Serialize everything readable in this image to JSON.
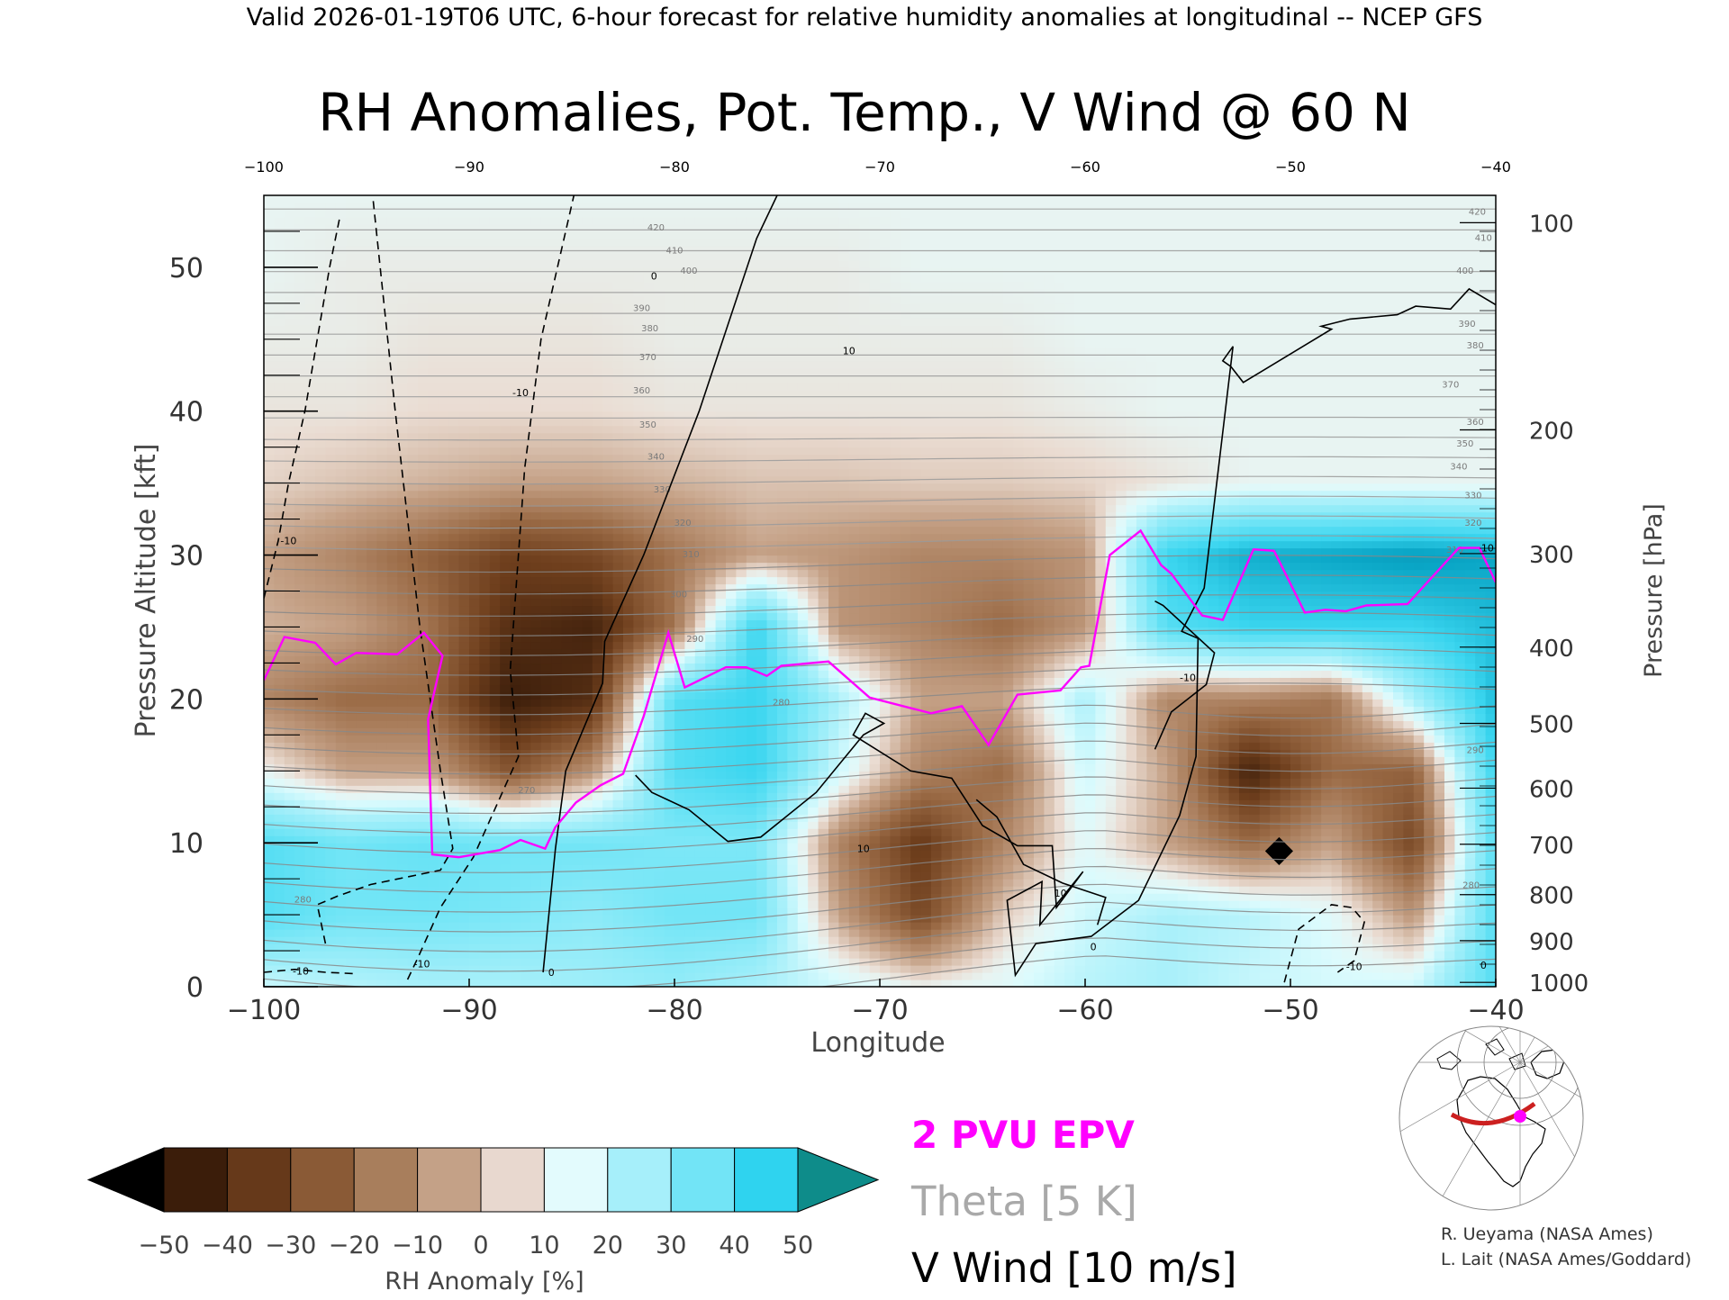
{
  "header": {
    "valid_line": "Valid 2026-01-19T06 UTC, 6-hour forecast for relative humidity anomalies at longitudinal -- NCEP GFS"
  },
  "chart_data": {
    "type": "heatmap",
    "title": "RH Anomalies, Pot. Temp., V Wind @ 60 N",
    "xlabel": "Longitude",
    "ylabel": "Pressure Altitude [kft]",
    "ylabel_right": "Pressure [hPa]",
    "xlim": [
      -100,
      -40
    ],
    "ylim": [
      0,
      55
    ],
    "x_ticks": [
      -100,
      -90,
      -80,
      -70,
      -60,
      -50,
      -40
    ],
    "x_tick_labels": [
      "−100",
      "−90",
      "−80",
      "−70",
      "−60",
      "−50",
      "−40"
    ],
    "y_ticks": [
      0,
      10,
      20,
      30,
      40,
      50
    ],
    "y_tick_labels": [
      "0",
      "10",
      "20",
      "30",
      "40",
      "50"
    ],
    "pressure_ticks": [
      {
        "label": "100",
        "kft": 53.1
      },
      {
        "label": "200",
        "kft": 38.7
      },
      {
        "label": "300",
        "kft": 30.1
      },
      {
        "label": "400",
        "kft": 23.6
      },
      {
        "label": "500",
        "kft": 18.3
      },
      {
        "label": "600",
        "kft": 13.8
      },
      {
        "label": "700",
        "kft": 9.9
      },
      {
        "label": "800",
        "kft": 6.4
      },
      {
        "label": "900",
        "kft": 3.2
      },
      {
        "label": "1000",
        "kft": 0.3
      }
    ],
    "colorbar": {
      "label": "RH Anomaly [%]",
      "tick_labels": [
        "−50",
        "−40",
        "−30",
        "−20",
        "−10",
        "0",
        "10",
        "20",
        "30",
        "40",
        "50"
      ],
      "colors": [
        "#000000",
        "#3b1d0a",
        "#5a3015",
        "#7b4a28",
        "#986641",
        "#b3866a",
        "#cfae9a",
        "#eedfd7",
        "#e3fbfd",
        "#b6f2fb",
        "#8debf8",
        "#5fe2f5",
        "#2fd3ef",
        "#0aa8c9",
        "#0a7fa0",
        "#0e8c8a"
      ]
    },
    "rh_anomaly_field": {
      "x": [
        -100,
        -96,
        -92,
        -88,
        -84,
        -80,
        -76,
        -72,
        -68,
        -64,
        -60,
        -56,
        -52,
        -48,
        -44,
        -40
      ],
      "y": [
        0,
        5,
        10,
        15,
        20,
        25,
        30,
        35,
        40,
        45,
        50,
        55
      ],
      "z": [
        [
          5,
          8,
          10,
          10,
          12,
          14,
          10,
          5,
          0,
          2,
          8,
          10,
          6,
          4,
          5,
          25
        ],
        [
          25,
          20,
          20,
          18,
          15,
          20,
          20,
          -10,
          -28,
          -5,
          5,
          10,
          8,
          2,
          -12,
          25
        ],
        [
          25,
          20,
          22,
          20,
          20,
          18,
          18,
          -15,
          -32,
          -15,
          2,
          -10,
          -20,
          -10,
          -28,
          25
        ],
        [
          0,
          -10,
          -10,
          -25,
          -12,
          25,
          30,
          5,
          -15,
          -20,
          5,
          -10,
          -38,
          -20,
          -22,
          30
        ],
        [
          -15,
          -20,
          -20,
          -40,
          -35,
          25,
          30,
          10,
          -10,
          -10,
          10,
          -15,
          -15,
          -18,
          10,
          35
        ],
        [
          -8,
          -10,
          -18,
          -35,
          -38,
          -18,
          30,
          -12,
          -15,
          -20,
          -12,
          25,
          30,
          30,
          30,
          35
        ],
        [
          -10,
          -15,
          -22,
          -30,
          -28,
          -18,
          -10,
          -12,
          -15,
          -15,
          -12,
          30,
          38,
          40,
          42,
          40
        ],
        [
          -4,
          -6,
          -8,
          -10,
          -10,
          -8,
          -6,
          -6,
          -5,
          -5,
          -4,
          -2,
          0,
          0,
          0,
          0
        ],
        [
          -2,
          -2,
          -3,
          -3,
          -3,
          -2,
          -2,
          -2,
          -2,
          -2,
          -1,
          0,
          0,
          0,
          0,
          0
        ],
        [
          -1,
          -1,
          -2,
          -2,
          -2,
          -1,
          -1,
          -1,
          -1,
          -1,
          0,
          0,
          0,
          0,
          0,
          0
        ],
        [
          0,
          -1,
          -1,
          -1,
          -1,
          -1,
          -1,
          -1,
          0,
          0,
          0,
          0,
          0,
          0,
          0,
          0
        ],
        [
          0,
          0,
          0,
          0,
          0,
          0,
          0,
          0,
          0,
          0,
          0,
          0,
          0,
          0,
          0,
          0
        ]
      ]
    },
    "theta_contours": {
      "interval_K": 5,
      "labels": [
        {
          "text": "270",
          "x": -87.2,
          "y": 13.7
        },
        {
          "text": "280",
          "x": -74.8,
          "y": 19.8
        },
        {
          "text": "290",
          "x": -79.0,
          "y": 24.2
        },
        {
          "text": "300",
          "x": -79.8,
          "y": 27.3
        },
        {
          "text": "310",
          "x": -79.2,
          "y": 30.1
        },
        {
          "text": "320",
          "x": -79.6,
          "y": 32.3
        },
        {
          "text": "330",
          "x": -80.6,
          "y": 34.6
        },
        {
          "text": "340",
          "x": -80.9,
          "y": 36.9
        },
        {
          "text": "350",
          "x": -81.3,
          "y": 39.1
        },
        {
          "text": "360",
          "x": -81.6,
          "y": 41.5
        },
        {
          "text": "370",
          "x": -81.3,
          "y": 43.8
        },
        {
          "text": "380",
          "x": -81.2,
          "y": 45.8
        },
        {
          "text": "390",
          "x": -81.6,
          "y": 47.2
        },
        {
          "text": "400",
          "x": -79.3,
          "y": 49.8
        },
        {
          "text": "410",
          "x": -80.0,
          "y": 51.2
        },
        {
          "text": "420",
          "x": -80.9,
          "y": 52.8
        },
        {
          "text": "420",
          "x": -40.9,
          "y": 53.9
        },
        {
          "text": "410",
          "x": -40.6,
          "y": 52.1
        },
        {
          "text": "400",
          "x": -41.5,
          "y": 49.8
        },
        {
          "text": "390",
          "x": -41.4,
          "y": 46.1
        },
        {
          "text": "380",
          "x": -41.0,
          "y": 44.6
        },
        {
          "text": "370",
          "x": -42.2,
          "y": 41.9
        },
        {
          "text": "360",
          "x": -41.0,
          "y": 39.3
        },
        {
          "text": "350",
          "x": -41.5,
          "y": 37.8
        },
        {
          "text": "340",
          "x": -41.8,
          "y": 36.2
        },
        {
          "text": "330",
          "x": -41.1,
          "y": 34.2
        },
        {
          "text": "320",
          "x": -41.1,
          "y": 32.3
        },
        {
          "text": "310",
          "x": -42.0,
          "y": 30.4
        },
        {
          "text": "290",
          "x": -41.0,
          "y": 16.5
        },
        {
          "text": "280",
          "x": -41.2,
          "y": 7.1
        },
        {
          "text": "280",
          "x": -98.1,
          "y": 6.1
        }
      ]
    },
    "epv_2pvu_line": {
      "x": [
        -100,
        -99,
        -97.5,
        -96.5,
        -95.5,
        -93.5,
        -92.2,
        -91.3,
        -92.0,
        -91.8,
        -90.5,
        -88.5,
        -87.5,
        -86.3,
        -85.8,
        -84.8,
        -83.6,
        -82.5,
        -81.5,
        -80.3,
        -79.5,
        -77.5,
        -76.5,
        -75.5,
        -74.8,
        -72.5,
        -70.5,
        -67.5,
        -66.0,
        -64.7,
        -63.3,
        -61.2,
        -60.2,
        -59.8,
        -58.8,
        -57.3,
        -56.3,
        -55.8,
        -54.3,
        -53.3,
        -51.8,
        -50.8,
        -49.3,
        -48.3,
        -47.3,
        -46.3,
        -44.3,
        -41.8,
        -40.8,
        -40.0
      ],
      "y": [
        21.3,
        24.3,
        23.9,
        22.4,
        23.2,
        23.1,
        24.6,
        23.0,
        18.6,
        9.2,
        9.0,
        9.5,
        10.2,
        9.6,
        11.1,
        12.8,
        14.0,
        14.8,
        18.8,
        24.6,
        20.8,
        22.2,
        22.2,
        21.6,
        22.3,
        22.6,
        20.1,
        19.0,
        19.5,
        16.8,
        20.3,
        20.6,
        22.2,
        22.3,
        30.0,
        31.7,
        29.3,
        28.7,
        25.8,
        25.5,
        30.4,
        30.3,
        26.0,
        26.2,
        26.1,
        26.5,
        26.6,
        30.5,
        30.5,
        28.1
      ]
    },
    "vwind_contours": [
      {
        "level": "0",
        "style": "solid",
        "x": [
          -86.4,
          -85.8,
          -85.3,
          -83.5,
          -83.4,
          -81.5,
          -78.8,
          -76.0,
          -75.0
        ],
        "y": [
          1.0,
          9.6,
          15.0,
          21.1,
          24.0,
          30.0,
          40.0,
          52.0,
          55.0
        ]
      },
      {
        "level": "10",
        "style": "solid",
        "x": [
          -81.9,
          -81.1,
          -79.3,
          -77.4,
          -75.8,
          -73.1,
          -70.8,
          -69.8,
          -70.7,
          -71.3,
          -68.5,
          -66.5,
          -65.0,
          -63.3,
          -61.6,
          -61.4,
          -60.1,
          -62.2,
          -62.1,
          -63.8,
          -63.4,
          -62.4,
          -59.7,
          -57.4,
          -55.4,
          -54.6,
          -54.5,
          -55.3,
          -54.2,
          -52.8,
          -53.3,
          -52.9,
          -52.3,
          -48.0,
          -48.5,
          -47.1,
          -44.8,
          -43.9,
          -42.2,
          -41.3,
          -40.0
        ],
        "y": [
          14.7,
          13.5,
          12.3,
          10.1,
          10.4,
          13.5,
          17.5,
          18.3,
          19.0,
          17.5,
          15.0,
          14.5,
          11.2,
          9.8,
          9.8,
          5.5,
          8.0,
          4.3,
          7.3,
          6.0,
          0.8,
          3.0,
          3.5,
          6.0,
          11.9,
          16.0,
          24.2,
          24.7,
          27.7,
          44.5,
          43.5,
          43.1,
          42.0,
          45.7,
          45.9,
          46.4,
          46.7,
          47.3,
          47.1,
          48.5,
          47.4
        ]
      },
      {
        "level": "-10",
        "style": "dashed",
        "x": [
          -97.0,
          -97.4,
          -96.4,
          -94.8,
          -91.4,
          -90.8,
          -91.4,
          -92.4,
          -93.6,
          -94.7
        ],
        "y": [
          3.0,
          5.7,
          6.3,
          7.1,
          8.1,
          9.6,
          15.0,
          25.0,
          40.0,
          55.0
        ]
      },
      {
        "level": "-10",
        "style": "dashed",
        "x": [
          -93.0,
          -92.5,
          -91.4,
          -89.8,
          -87.6,
          -88.0,
          -87.7,
          -87.3,
          -86.5,
          -84.9
        ],
        "y": [
          0.5,
          2.0,
          5.5,
          9.0,
          16.0,
          22.0,
          28.0,
          36.0,
          45.0,
          55.0
        ]
      },
      {
        "level": "-10",
        "style": "dashed",
        "x": [
          -100.0,
          -99.3,
          -98.8,
          -98.0,
          -97.4,
          -96.8,
          -96.3
        ],
        "y": [
          27.0,
          31.0,
          35.0,
          40.0,
          45.0,
          50.0,
          53.5
        ]
      },
      {
        "level": "-10",
        "style": "dashed",
        "x": [
          -100.0,
          -98.5,
          -97.0,
          -95.5
        ],
        "y": [
          1.0,
          1.2,
          1.0,
          0.9
        ]
      },
      {
        "level": "-10",
        "style": "dashed",
        "x": [
          -50.3,
          -49.6,
          -48.0,
          -47.0,
          -46.4,
          -46.9,
          -47.7
        ],
        "y": [
          0.3,
          4.0,
          5.7,
          5.5,
          4.5,
          1.8,
          1.0
        ]
      },
      {
        "level": "-10",
        "style": "solid",
        "x": [
          -56.6,
          -55.8,
          -54.1,
          -53.7,
          -56.2,
          -56.6
        ],
        "y": [
          16.5,
          19.1,
          21.0,
          23.2,
          26.5,
          26.8
        ]
      },
      {
        "level": "-10",
        "style": "solid",
        "x": [
          -59.4,
          -59.0,
          -61.1,
          -63.0,
          -64.3,
          -65.3
        ],
        "y": [
          4.3,
          6.2,
          7.2,
          8.5,
          11.8,
          13.0
        ]
      }
    ],
    "vwind_labels": [
      {
        "text": "0",
        "x": -81.0,
        "y": 49.4
      },
      {
        "text": "0",
        "x": -86.0,
        "y": 1.0
      },
      {
        "text": "0",
        "x": -59.6,
        "y": 2.8
      },
      {
        "text": "0",
        "x": -40.6,
        "y": 1.5
      },
      {
        "text": "10",
        "x": -71.5,
        "y": 44.2
      },
      {
        "text": "10",
        "x": -70.8,
        "y": 9.6
      },
      {
        "text": "10",
        "x": -61.2,
        "y": 6.5
      },
      {
        "text": "10",
        "x": -40.4,
        "y": 30.5
      },
      {
        "text": "-10",
        "x": -87.5,
        "y": 41.3
      },
      {
        "text": "-10",
        "x": -98.8,
        "y": 31.0
      },
      {
        "text": "-10",
        "x": -98.2,
        "y": 1.1
      },
      {
        "text": "-10",
        "x": -92.3,
        "y": 1.6
      },
      {
        "text": "-10",
        "x": -55.0,
        "y": 21.5
      },
      {
        "text": "-10",
        "x": -46.9,
        "y": 1.4
      }
    ],
    "legend_items": [
      {
        "text": "2 PVU EPV",
        "color": "#ff00ff"
      },
      {
        "text": "Theta [5 K]",
        "color": "#a9a9a9"
      },
      {
        "text": "V Wind [10 m/s]",
        "color": "#000000"
      }
    ],
    "grid": false
  },
  "credits": {
    "line1": "R. Ueyama (NASA Ames)",
    "line2": "L. Lait (NASA Ames/Goddard)"
  }
}
